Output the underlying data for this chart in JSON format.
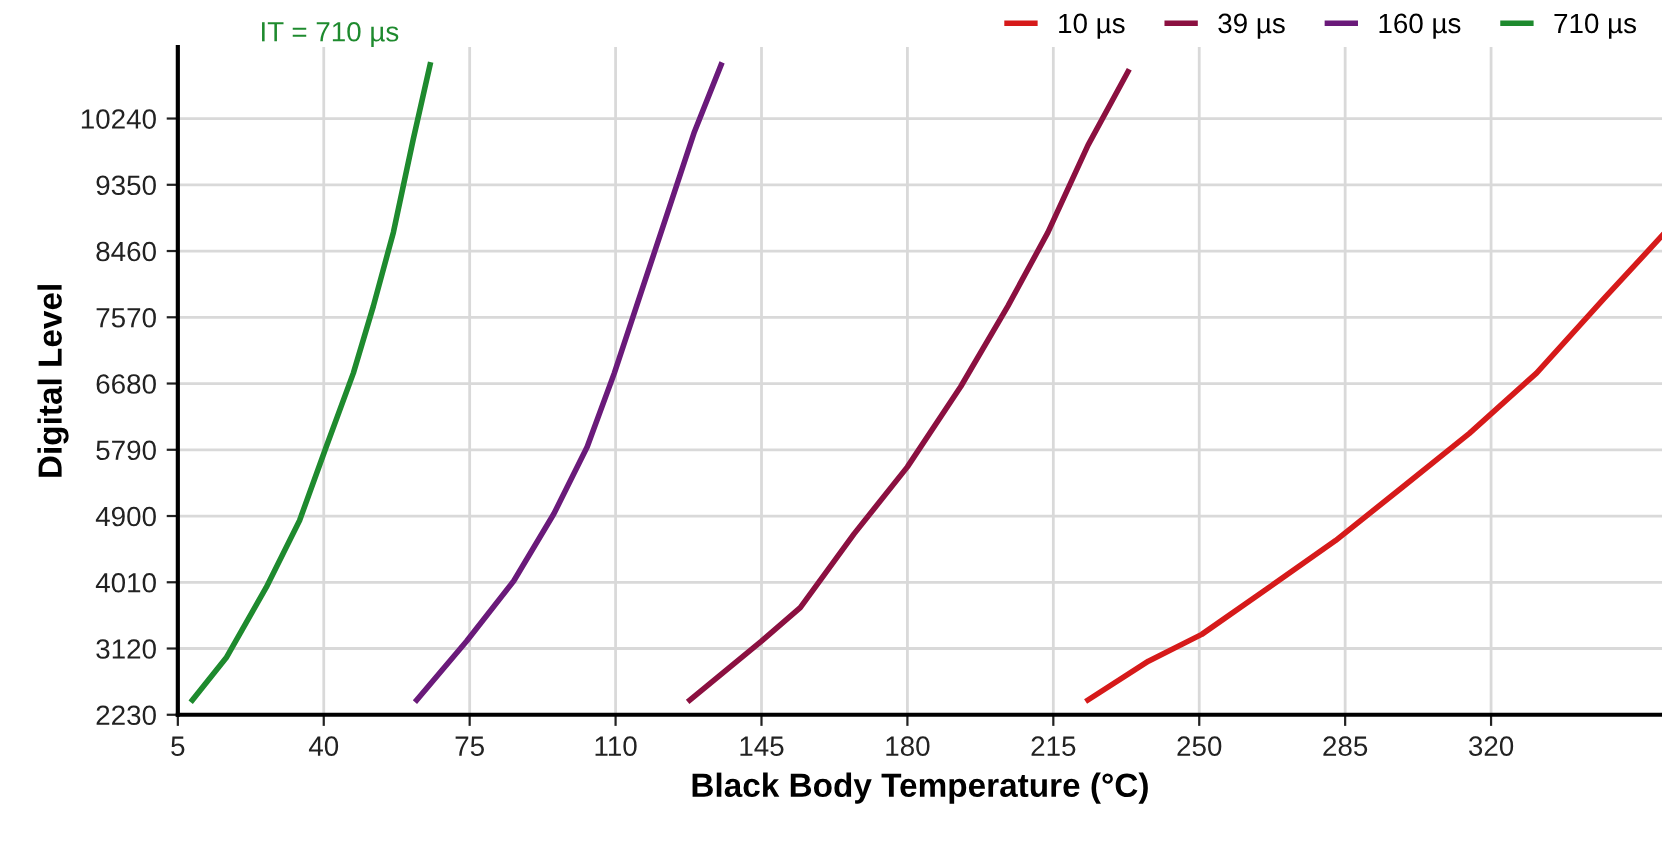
{
  "chart_data": {
    "type": "line",
    "xlabel": "Black Body Temperature (°C)",
    "ylabel": "Digital Level",
    "annotations": [
      "IT = 710 µs"
    ],
    "xlim": [
      5,
      361
    ],
    "xticks": [
      5,
      40,
      75,
      110,
      145,
      180,
      215,
      250,
      285,
      320
    ],
    "ylim": [
      2230,
      11200
    ],
    "yticks": [
      2230,
      3120,
      4010,
      4900,
      5790,
      6680,
      7570,
      8460,
      9350,
      10240
    ],
    "grid": true,
    "legend": "top right",
    "marker": "none",
    "line_style": "solid",
    "series": [
      {
        "name": "10 µs",
        "color": "#d61a1a",
        "x": [
          223.3,
          237.8,
          250.6,
          266.7,
          282.7,
          298.8,
          314.8,
          330.9,
          346.9,
          361
        ],
        "values": [
          2428,
          2950,
          3310,
          3940,
          4570,
          5290,
          6010,
          6820,
          7810,
          8665
        ]
      },
      {
        "name": "39 µs",
        "color": "#8b1040",
        "x": [
          127.8,
          145,
          154.3,
          167.2,
          180,
          192.8,
          204.1,
          213.7,
          223.3,
          232.9
        ],
        "values": [
          2428,
          3220,
          3670,
          4660,
          5560,
          6640,
          7720,
          8710,
          9880,
          10870
        ]
      },
      {
        "name": "160 µs",
        "color": "#6a1a7a",
        "x": [
          62.3,
          74.3,
          85.6,
          95.2,
          103.2,
          109.7,
          116.1,
          122.5,
          128.9,
          135.3
        ],
        "values": [
          2428,
          3220,
          4030,
          4930,
          5830,
          6820,
          7900,
          8980,
          10060,
          10960
        ]
      },
      {
        "name": "710 µs",
        "color": "#1e8a2e",
        "x": [
          8.5,
          16.6,
          26.2,
          34.2,
          40.6,
          47.1,
          51.9,
          56.7,
          61.5,
          65.5
        ],
        "values": [
          2428,
          2995,
          3940,
          4840,
          5830,
          6820,
          7720,
          8710,
          9970,
          10960
        ]
      }
    ]
  }
}
